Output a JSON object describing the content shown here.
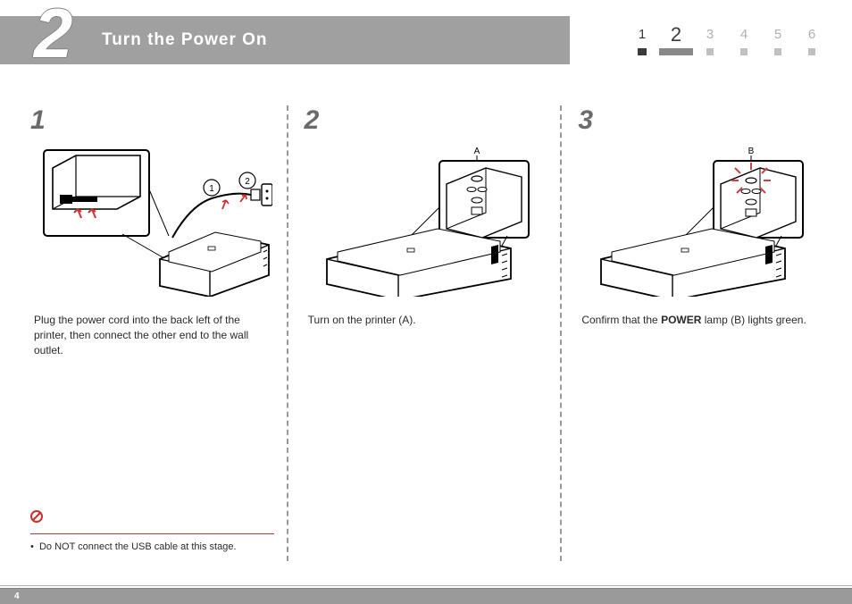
{
  "header": {
    "step_number": "2",
    "title": "Turn the Power On",
    "bar_color": "#a0a0a0",
    "title_color": "#ffffff"
  },
  "progress": {
    "items": [
      {
        "num": "1",
        "state": "done"
      },
      {
        "num": "2",
        "state": "current"
      },
      {
        "num": "3",
        "state": "future"
      },
      {
        "num": "4",
        "state": "future"
      },
      {
        "num": "5",
        "state": "future"
      },
      {
        "num": "6",
        "state": "future"
      }
    ],
    "done_color": "#3a3a3a",
    "future_color": "#b0b0b0",
    "tick_future": "#c0c0c0",
    "tick_current": "#888888"
  },
  "steps": [
    {
      "num": "1",
      "text": "Plug the power cord into the back left of the printer, then connect the other end to the wall outlet.",
      "callouts": [
        "1",
        "2"
      ],
      "warning": {
        "text": "Do NOT connect the USB cable at this stage.",
        "bullet": "•",
        "line_color": "#c73030",
        "icon_color": "#c73030"
      }
    },
    {
      "num": "2",
      "text": "Turn on the printer (A).",
      "label": "A"
    },
    {
      "num": "3",
      "text_before": "Confirm that the ",
      "text_bold": "POWER",
      "text_after": " lamp (B) lights green.",
      "label": "B",
      "lamp_color": "#d04040"
    }
  ],
  "page_number": "4",
  "colors": {
    "background": "#ffffff",
    "text": "#2a2a2a",
    "substep_num": "#6a6a6a",
    "divider": "#9a9a9a",
    "footer_bar": "#9a9a9a"
  }
}
